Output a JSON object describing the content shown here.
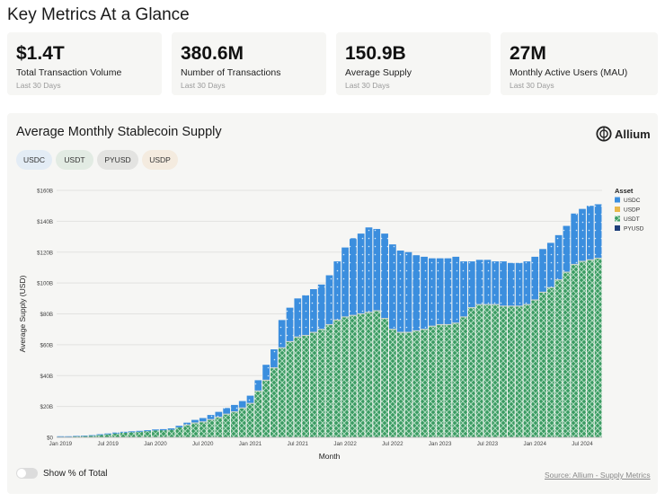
{
  "page": {
    "title": "Key Metrics At a Glance"
  },
  "kpis": [
    {
      "value": "$1.4T",
      "label": "Total Transaction Volume",
      "period": "Last 30 Days"
    },
    {
      "value": "380.6M",
      "label": "Number of Transactions",
      "period": "Last 30 Days"
    },
    {
      "value": "150.9B",
      "label": "Average Supply",
      "period": "Last 30 Days"
    },
    {
      "value": "27M",
      "label": "Monthly Active Users (MAU)",
      "period": "Last 30 Days"
    }
  ],
  "chart_card": {
    "title": "Average Monthly Stablecoin Supply",
    "brand": "Allium",
    "filters": [
      {
        "label": "USDC",
        "color": "#e3ecf5"
      },
      {
        "label": "USDT",
        "color": "#e2ebe3"
      },
      {
        "label": "PYUSD",
        "color": "#e3e3e1"
      },
      {
        "label": "USDP",
        "color": "#f4ebdf"
      }
    ],
    "toggle_label": "Show % of Total",
    "source": "Source: Allium - Supply Metrics"
  },
  "colors": {
    "USDC": "#3b8ede",
    "USDT": "#3a9b62",
    "USDP": "#e8b84a",
    "PYUSD": "#1f3f7a"
  },
  "chart_data": {
    "type": "area",
    "stacked": true,
    "title": "Average Monthly Stablecoin Supply",
    "xlabel": "Month",
    "ylabel": "Average Supply (USD)",
    "ylim": [
      0,
      160
    ],
    "yticks": [
      0,
      20,
      40,
      60,
      80,
      100,
      120,
      140,
      160
    ],
    "ytick_labels": [
      "$0",
      "$20B",
      "$40B",
      "$60B",
      "$80B",
      "$100B",
      "$120B",
      "$140B",
      "$160B"
    ],
    "xtick_labels": [
      "Jan 2019",
      "Jul 2019",
      "Jan 2020",
      "Jul 2020",
      "Jan 2021",
      "Jul 2021",
      "Jan 2022",
      "Jul 2022",
      "Jan 2023",
      "Jul 2023",
      "Jan 2024",
      "Jul 2024"
    ],
    "xtick_months": [
      0,
      6,
      12,
      18,
      24,
      30,
      36,
      42,
      48,
      54,
      60,
      66
    ],
    "legend_title": "Asset",
    "legend": [
      "USDC",
      "USDP",
      "USDT",
      "PYUSD"
    ],
    "legend_position": "top-right",
    "grid": true,
    "months": [
      "2019-01",
      "2019-02",
      "2019-03",
      "2019-04",
      "2019-05",
      "2019-06",
      "2019-07",
      "2019-08",
      "2019-09",
      "2019-10",
      "2019-11",
      "2019-12",
      "2020-01",
      "2020-02",
      "2020-03",
      "2020-04",
      "2020-05",
      "2020-06",
      "2020-07",
      "2020-08",
      "2020-09",
      "2020-10",
      "2020-11",
      "2020-12",
      "2021-01",
      "2021-02",
      "2021-03",
      "2021-04",
      "2021-05",
      "2021-06",
      "2021-07",
      "2021-08",
      "2021-09",
      "2021-10",
      "2021-11",
      "2021-12",
      "2022-01",
      "2022-02",
      "2022-03",
      "2022-04",
      "2022-05",
      "2022-06",
      "2022-07",
      "2022-08",
      "2022-09",
      "2022-10",
      "2022-11",
      "2022-12",
      "2023-01",
      "2023-02",
      "2023-03",
      "2023-04",
      "2023-05",
      "2023-06",
      "2023-07",
      "2023-08",
      "2023-09",
      "2023-10",
      "2023-11",
      "2023-12",
      "2024-01",
      "2024-02",
      "2024-03",
      "2024-04",
      "2024-05",
      "2024-06",
      "2024-07",
      "2024-08",
      "2024-09"
    ],
    "series": [
      {
        "name": "USDT",
        "values": [
          0.5,
          0.5,
          0.6,
          0.8,
          1.0,
          1.5,
          2.0,
          2.5,
          3.0,
          3.3,
          3.6,
          4.0,
          4.5,
          4.6,
          5.0,
          6.5,
          8.0,
          9.3,
          10.0,
          11.5,
          13.0,
          15.0,
          16.5,
          19.0,
          22.0,
          30.0,
          37.0,
          45.0,
          58.0,
          62.0,
          65.0,
          66.0,
          68.0,
          70.0,
          73.0,
          76.0,
          78.0,
          79.0,
          80.0,
          81.0,
          82.0,
          77.0,
          70.0,
          68.0,
          68.0,
          69.0,
          70.0,
          72.0,
          73.0,
          73.0,
          74.0,
          78.0,
          84.0,
          86.0,
          86.0,
          86.0,
          85.0,
          85.0,
          85.0,
          86.0,
          89.0,
          94.0,
          97.0,
          102.0,
          107.0,
          112.0,
          114.0,
          115.0,
          116.0
        ]
      },
      {
        "name": "USDC",
        "values": [
          0.2,
          0.2,
          0.3,
          0.3,
          0.4,
          0.5,
          0.5,
          0.6,
          0.6,
          0.6,
          0.6,
          0.6,
          0.6,
          0.7,
          0.8,
          1.0,
          1.5,
          2.0,
          2.5,
          3.0,
          3.5,
          4.0,
          4.5,
          4.5,
          5.0,
          7.0,
          10.0,
          12.0,
          18.0,
          22.0,
          25.0,
          26.0,
          28.0,
          29.0,
          32.0,
          38.0,
          45.0,
          50.0,
          52.0,
          55.0,
          53.0,
          55.0,
          55.0,
          53.0,
          52.0,
          49.0,
          47.0,
          44.0,
          43.0,
          43.0,
          43.0,
          36.0,
          30.0,
          29.0,
          29.0,
          28.0,
          29.0,
          28.0,
          28.0,
          28.0,
          28.0,
          28.0,
          29.0,
          29.0,
          30.0,
          33.0,
          34.0,
          35.0,
          35.0
        ]
      },
      {
        "name": "USDP",
        "values": [
          0,
          0,
          0,
          0,
          0,
          0,
          0,
          0,
          0,
          0,
          0,
          0,
          0,
          0,
          0,
          0,
          0,
          0,
          0,
          0,
          0,
          0,
          0,
          0,
          0,
          0,
          0,
          0,
          0,
          0,
          0,
          0,
          0,
          0,
          0,
          0,
          0,
          0,
          0,
          0,
          0,
          0,
          0,
          0,
          0,
          0,
          0,
          0,
          0,
          0,
          0,
          0,
          0,
          0,
          0,
          0,
          0,
          0,
          0,
          0,
          0,
          0,
          0,
          0,
          0,
          0,
          0,
          0,
          0
        ]
      },
      {
        "name": "PYUSD",
        "values": [
          0,
          0,
          0,
          0,
          0,
          0,
          0,
          0,
          0,
          0,
          0,
          0,
          0,
          0,
          0,
          0,
          0,
          0,
          0,
          0,
          0,
          0,
          0,
          0,
          0,
          0,
          0,
          0,
          0,
          0,
          0,
          0,
          0,
          0,
          0,
          0,
          0,
          0,
          0,
          0,
          0,
          0,
          0,
          0,
          0,
          0,
          0,
          0,
          0,
          0,
          0,
          0,
          0,
          0,
          0,
          0,
          0,
          0,
          0,
          0,
          0,
          0,
          0,
          0,
          0,
          0,
          0,
          0,
          0
        ]
      }
    ]
  }
}
